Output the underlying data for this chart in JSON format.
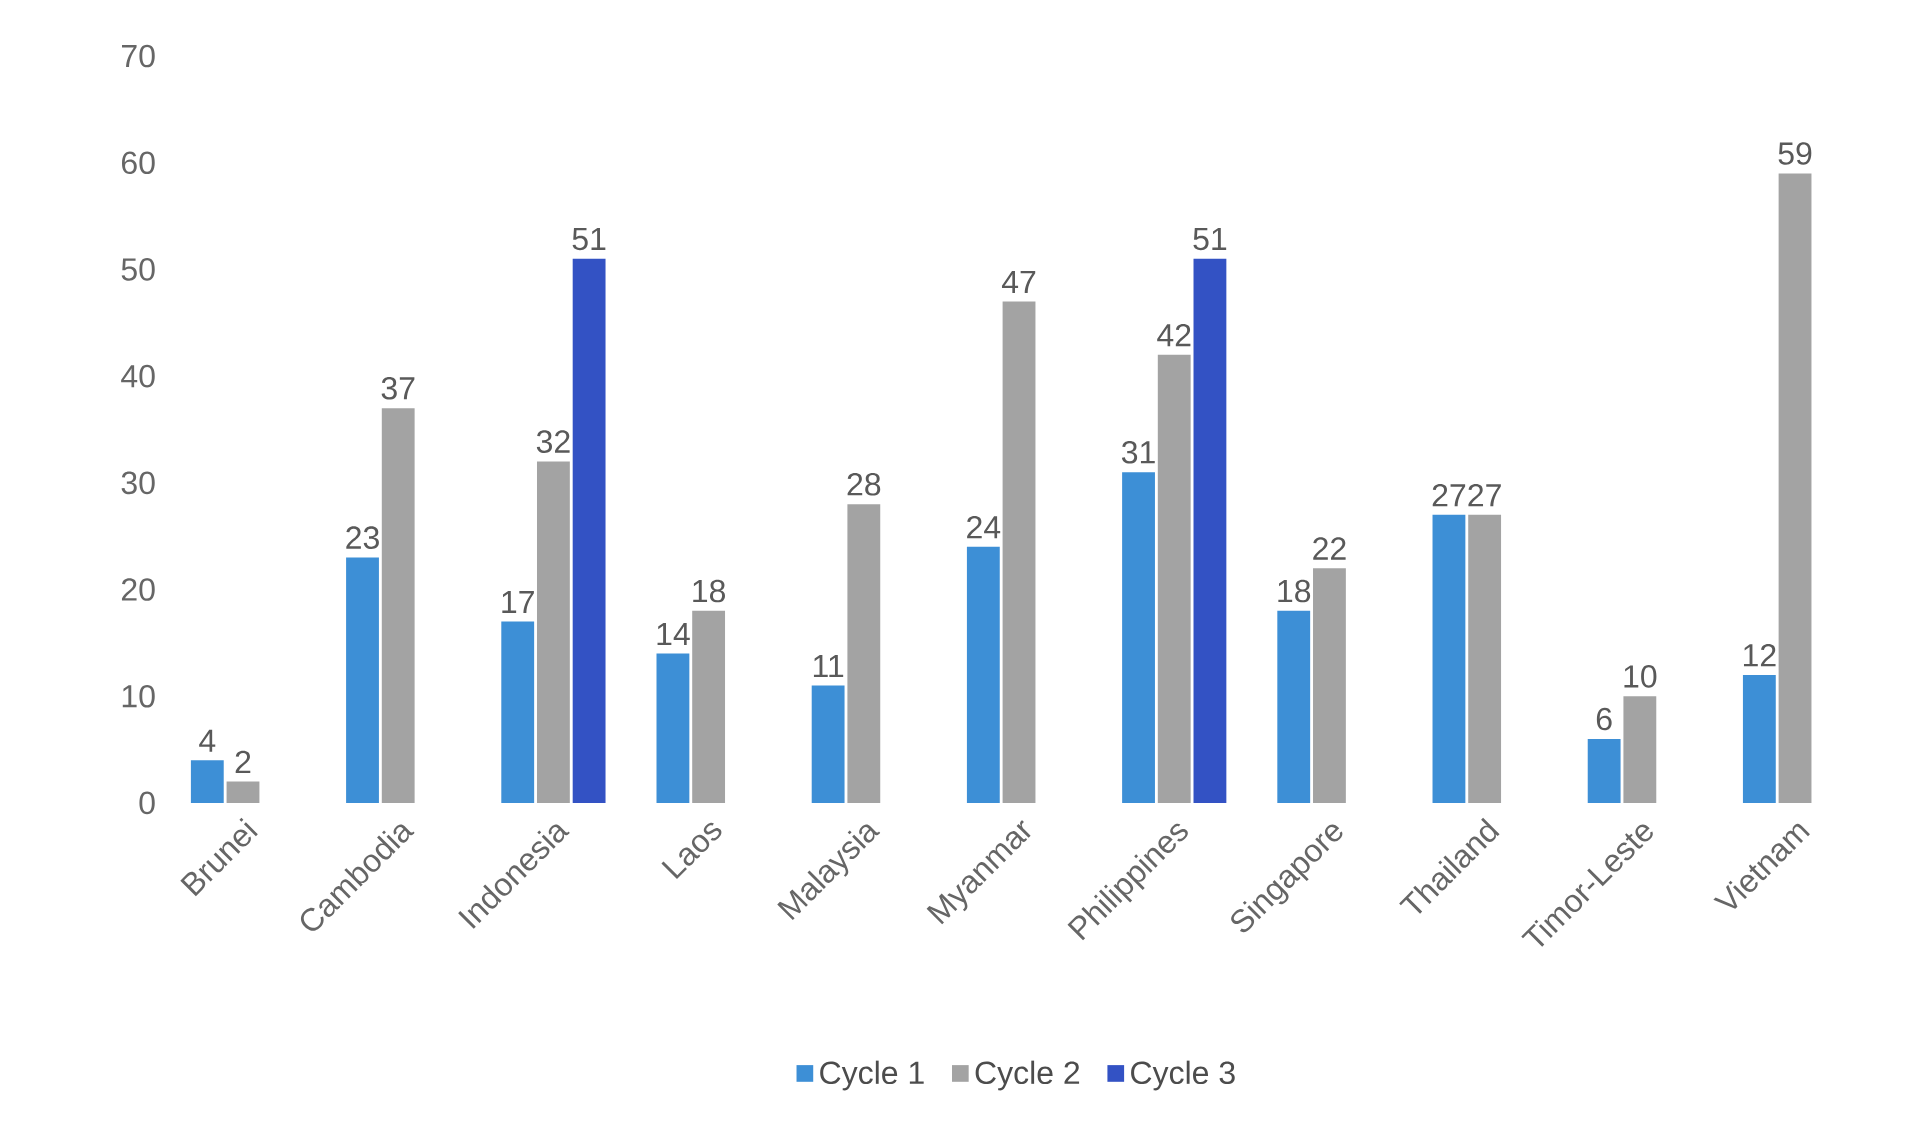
{
  "chart_data": {
    "type": "bar",
    "categories": [
      "Brunei",
      "Cambodia",
      "Indonesia",
      "Laos",
      "Malaysia",
      "Myanmar",
      "Philippines",
      "Singapore",
      "Thailand",
      "Timor-Leste",
      "Vietnam"
    ],
    "series": [
      {
        "name": "Cycle 1",
        "color": "#3d8fd6",
        "values": [
          4,
          23,
          17,
          14,
          11,
          24,
          31,
          18,
          27,
          6,
          12
        ]
      },
      {
        "name": "Cycle 2",
        "color": "#a3a3a3",
        "values": [
          2,
          37,
          32,
          18,
          28,
          47,
          42,
          22,
          27,
          10,
          59
        ]
      },
      {
        "name": "Cycle 3",
        "color": "#3352c4",
        "values": [
          null,
          null,
          51,
          null,
          null,
          null,
          51,
          null,
          null,
          null,
          null
        ]
      }
    ],
    "ylim": [
      0,
      70
    ],
    "yticks": [
      0,
      10,
      20,
      30,
      40,
      50,
      60,
      70
    ],
    "data_labels": true,
    "legend": "bottom",
    "grid": false
  }
}
